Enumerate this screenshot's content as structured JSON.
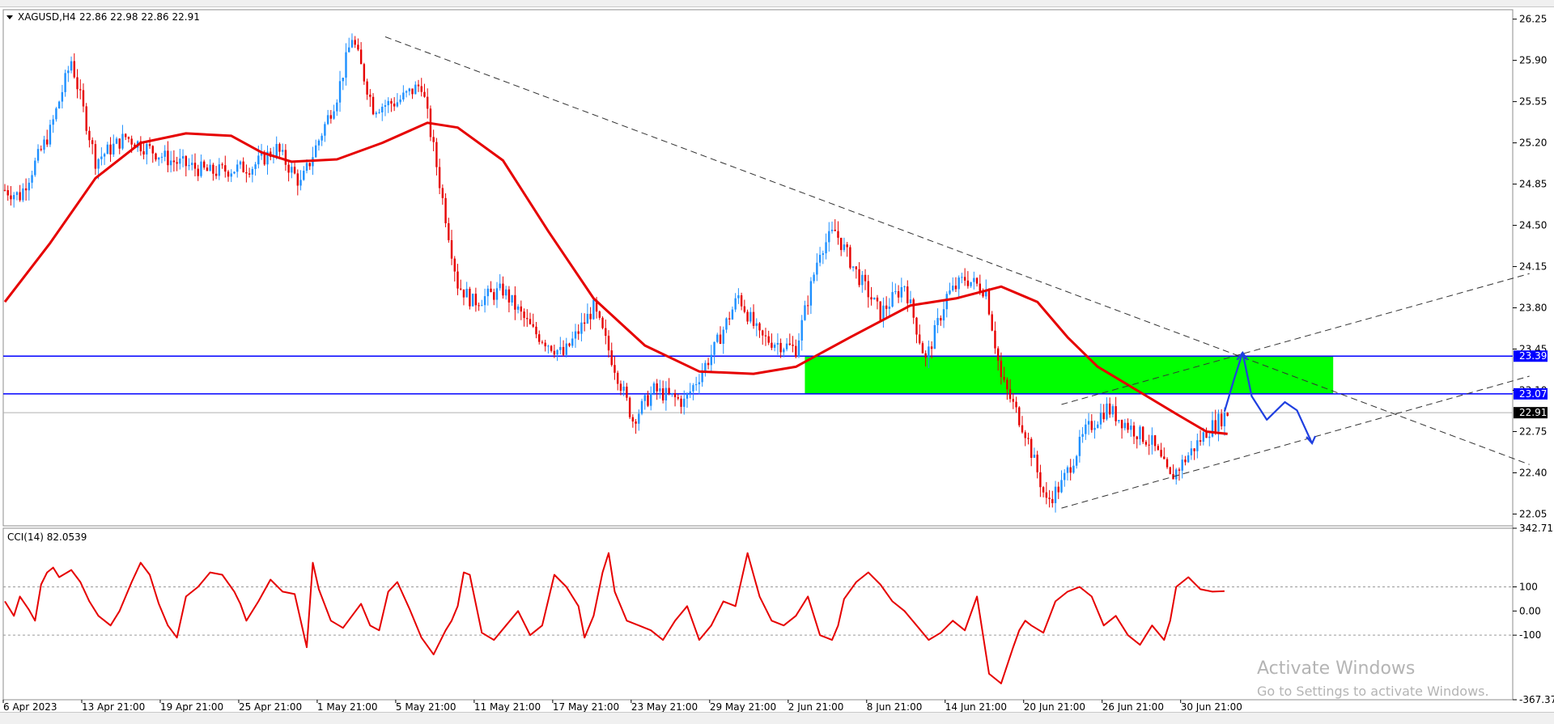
{
  "header": {
    "symbol_info": "XAGUSD,H4",
    "ohlc": "22.86 22.98 22.86 22.91"
  },
  "colors": {
    "bull": "#1e90ff",
    "bear": "#e60000",
    "ma": "#e60000",
    "zone": "#00ff00",
    "level_line": "#0000ff",
    "trend": "#333333",
    "sketch": "#1f3fe0",
    "current_price_bg": "#000000"
  },
  "chart_data": [
    {
      "type": "candlestick",
      "symbol": "XAGUSD",
      "timeframe": "H4",
      "ylim": [
        21.95,
        26.33
      ],
      "price_ticks": [
        "26.25",
        "25.90",
        "25.55",
        "25.20",
        "24.85",
        "24.50",
        "24.15",
        "23.80",
        "23.45",
        "23.10",
        "22.75",
        "22.40",
        "22.05"
      ],
      "time_ticks": [
        "6 Apr 2023",
        "13 Apr 21:00",
        "19 Apr 21:00",
        "25 Apr 21:00",
        "1 May 21:00",
        "5 May 21:00",
        "11 May 21:00",
        "17 May 21:00",
        "23 May 21:00",
        "29 May 21:00",
        "2 Jun 21:00",
        "8 Jun 21:00",
        "14 Jun 21:00",
        "20 Jun 21:00",
        "26 Jun 21:00",
        "30 Jun 21:00"
      ],
      "close_path": [
        {
          "t": 0,
          "v": 24.8
        },
        {
          "t": 5,
          "v": 24.75
        },
        {
          "t": 15,
          "v": 25.3
        },
        {
          "t": 22,
          "v": 25.9
        },
        {
          "t": 30,
          "v": 25.05
        },
        {
          "t": 40,
          "v": 25.25
        },
        {
          "t": 55,
          "v": 25.05
        },
        {
          "t": 68,
          "v": 24.95
        },
        {
          "t": 82,
          "v": 25.0
        },
        {
          "t": 90,
          "v": 25.15
        },
        {
          "t": 98,
          "v": 24.85
        },
        {
          "t": 110,
          "v": 25.6
        },
        {
          "t": 115,
          "v": 26.1
        },
        {
          "t": 122,
          "v": 25.5
        },
        {
          "t": 130,
          "v": 25.55
        },
        {
          "t": 138,
          "v": 25.7
        },
        {
          "t": 142,
          "v": 25.15
        },
        {
          "t": 150,
          "v": 24.0
        },
        {
          "t": 155,
          "v": 23.85
        },
        {
          "t": 165,
          "v": 23.95
        },
        {
          "t": 175,
          "v": 23.6
        },
        {
          "t": 185,
          "v": 23.4
        },
        {
          "t": 195,
          "v": 23.8
        },
        {
          "t": 202,
          "v": 23.3
        },
        {
          "t": 208,
          "v": 22.85
        },
        {
          "t": 215,
          "v": 23.1
        },
        {
          "t": 225,
          "v": 23.0
        },
        {
          "t": 235,
          "v": 23.45
        },
        {
          "t": 243,
          "v": 23.9
        },
        {
          "t": 250,
          "v": 23.55
        },
        {
          "t": 262,
          "v": 23.45
        },
        {
          "t": 270,
          "v": 24.3
        },
        {
          "t": 275,
          "v": 24.45
        },
        {
          "t": 282,
          "v": 24.1
        },
        {
          "t": 290,
          "v": 23.75
        },
        {
          "t": 298,
          "v": 24.0
        },
        {
          "t": 305,
          "v": 23.35
        },
        {
          "t": 312,
          "v": 23.9
        },
        {
          "t": 318,
          "v": 24.05
        },
        {
          "t": 325,
          "v": 23.95
        },
        {
          "t": 330,
          "v": 23.2
        },
        {
          "t": 338,
          "v": 22.75
        },
        {
          "t": 345,
          "v": 22.15
        },
        {
          "t": 350,
          "v": 22.3
        },
        {
          "t": 358,
          "v": 22.75
        },
        {
          "t": 365,
          "v": 22.95
        },
        {
          "t": 372,
          "v": 22.8
        },
        {
          "t": 380,
          "v": 22.65
        },
        {
          "t": 386,
          "v": 22.35
        },
        {
          "t": 392,
          "v": 22.55
        },
        {
          "t": 398,
          "v": 22.75
        },
        {
          "t": 405,
          "v": 22.91
        }
      ],
      "ma_path": [
        {
          "t": 0,
          "v": 23.85
        },
        {
          "t": 15,
          "v": 24.35
        },
        {
          "t": 30,
          "v": 24.9
        },
        {
          "t": 45,
          "v": 25.2
        },
        {
          "t": 60,
          "v": 25.28
        },
        {
          "t": 75,
          "v": 25.26
        },
        {
          "t": 85,
          "v": 25.12
        },
        {
          "t": 95,
          "v": 25.04
        },
        {
          "t": 110,
          "v": 25.06
        },
        {
          "t": 125,
          "v": 25.2
        },
        {
          "t": 140,
          "v": 25.37
        },
        {
          "t": 150,
          "v": 25.33
        },
        {
          "t": 165,
          "v": 25.05
        },
        {
          "t": 180,
          "v": 24.45
        },
        {
          "t": 195,
          "v": 23.88
        },
        {
          "t": 212,
          "v": 23.48
        },
        {
          "t": 230,
          "v": 23.26
        },
        {
          "t": 248,
          "v": 23.24
        },
        {
          "t": 262,
          "v": 23.3
        },
        {
          "t": 280,
          "v": 23.55
        },
        {
          "t": 300,
          "v": 23.82
        },
        {
          "t": 315,
          "v": 23.88
        },
        {
          "t": 330,
          "v": 23.98
        },
        {
          "t": 342,
          "v": 23.85
        },
        {
          "t": 352,
          "v": 23.55
        },
        {
          "t": 362,
          "v": 23.3
        },
        {
          "t": 375,
          "v": 23.1
        },
        {
          "t": 388,
          "v": 22.9
        },
        {
          "t": 398,
          "v": 22.75
        },
        {
          "t": 405,
          "v": 22.73
        }
      ],
      "zone": {
        "t_start": 265,
        "t_end": 440,
        "top": 23.39,
        "bottom": 23.07
      },
      "levels": [
        {
          "value": 23.39,
          "label": "23.39"
        },
        {
          "value": 23.07,
          "label": "23.07"
        }
      ],
      "current_price": {
        "value": 22.91,
        "label": "22.91"
      },
      "trendlines": [
        {
          "t1": 126,
          "v1": 26.1,
          "t2": 505,
          "v2": 22.47
        },
        {
          "t1": 350,
          "v1": 22.1,
          "t2": 505,
          "v2": 23.22
        },
        {
          "t1": 350,
          "v1": 22.98,
          "t2": 505,
          "v2": 24.09
        }
      ],
      "projection": [
        {
          "t": 404,
          "v": 22.92
        },
        {
          "t": 407,
          "v": 23.18
        },
        {
          "t": 410,
          "v": 23.42
        },
        {
          "t": 413,
          "v": 23.05
        },
        {
          "t": 418,
          "v": 22.85
        },
        {
          "t": 424,
          "v": 23.0
        },
        {
          "t": 428,
          "v": 22.93
        },
        {
          "t": 433,
          "v": 22.65
        }
      ]
    },
    {
      "type": "line",
      "title": "CCI(14) 82.0539",
      "ylim": [
        -367.374,
        342.715
      ],
      "ticks": [
        "342.715",
        "100",
        "0.00",
        "-100",
        "-367.374"
      ],
      "x": [
        0,
        3,
        5,
        8,
        10,
        12,
        14,
        16,
        18,
        22,
        25,
        28,
        31,
        35,
        38,
        42,
        45,
        48,
        51,
        54,
        57,
        60,
        64,
        68,
        72,
        76,
        78,
        80,
        84,
        88,
        92,
        96,
        100,
        102,
        104,
        108,
        112,
        115,
        118,
        121,
        124,
        127,
        130,
        134,
        138,
        142,
        146,
        148,
        150,
        152,
        154,
        158,
        162,
        166,
        170,
        174,
        178,
        182,
        186,
        190,
        192,
        195,
        198,
        200,
        202,
        206,
        210,
        214,
        218,
        222,
        226,
        230,
        234,
        238,
        242,
        246,
        248,
        250,
        254,
        258,
        262,
        266,
        270,
        274,
        276,
        278,
        282,
        286,
        290,
        294,
        298,
        302,
        306,
        310,
        314,
        318,
        322,
        326,
        330,
        334,
        336,
        338,
        340,
        344,
        348,
        352,
        356,
        360,
        364,
        368,
        372,
        376,
        380,
        384,
        386,
        388,
        392,
        396,
        400,
        404
      ],
      "values": [
        40,
        -20,
        60,
        5,
        -40,
        110,
        160,
        180,
        140,
        170,
        120,
        40,
        -20,
        -60,
        0,
        120,
        200,
        150,
        30,
        -60,
        -110,
        60,
        100,
        160,
        150,
        80,
        30,
        -40,
        40,
        130,
        80,
        70,
        -150,
        200,
        90,
        -40,
        -70,
        -20,
        30,
        -60,
        -80,
        80,
        120,
        10,
        -110,
        -180,
        -80,
        -40,
        20,
        160,
        150,
        -90,
        -120,
        -60,
        0,
        -100,
        -60,
        150,
        100,
        20,
        -110,
        -20,
        160,
        240,
        80,
        -40,
        -60,
        -80,
        -120,
        -40,
        20,
        -120,
        -60,
        40,
        20,
        240,
        150,
        60,
        -40,
        -60,
        -20,
        60,
        -100,
        -120,
        -60,
        50,
        120,
        160,
        110,
        40,
        0,
        -60,
        -120,
        -90,
        -40,
        -80,
        60,
        -260,
        -300,
        -150,
        -80,
        -40,
        -60,
        -90,
        40,
        80,
        100,
        60,
        -60,
        -20,
        -100,
        -140,
        -60,
        -120,
        -40,
        100,
        140,
        90,
        80,
        82
      ]
    }
  ],
  "watermark": {
    "line1": "Activate Windows",
    "line2": "Go to Settings to activate Windows."
  }
}
